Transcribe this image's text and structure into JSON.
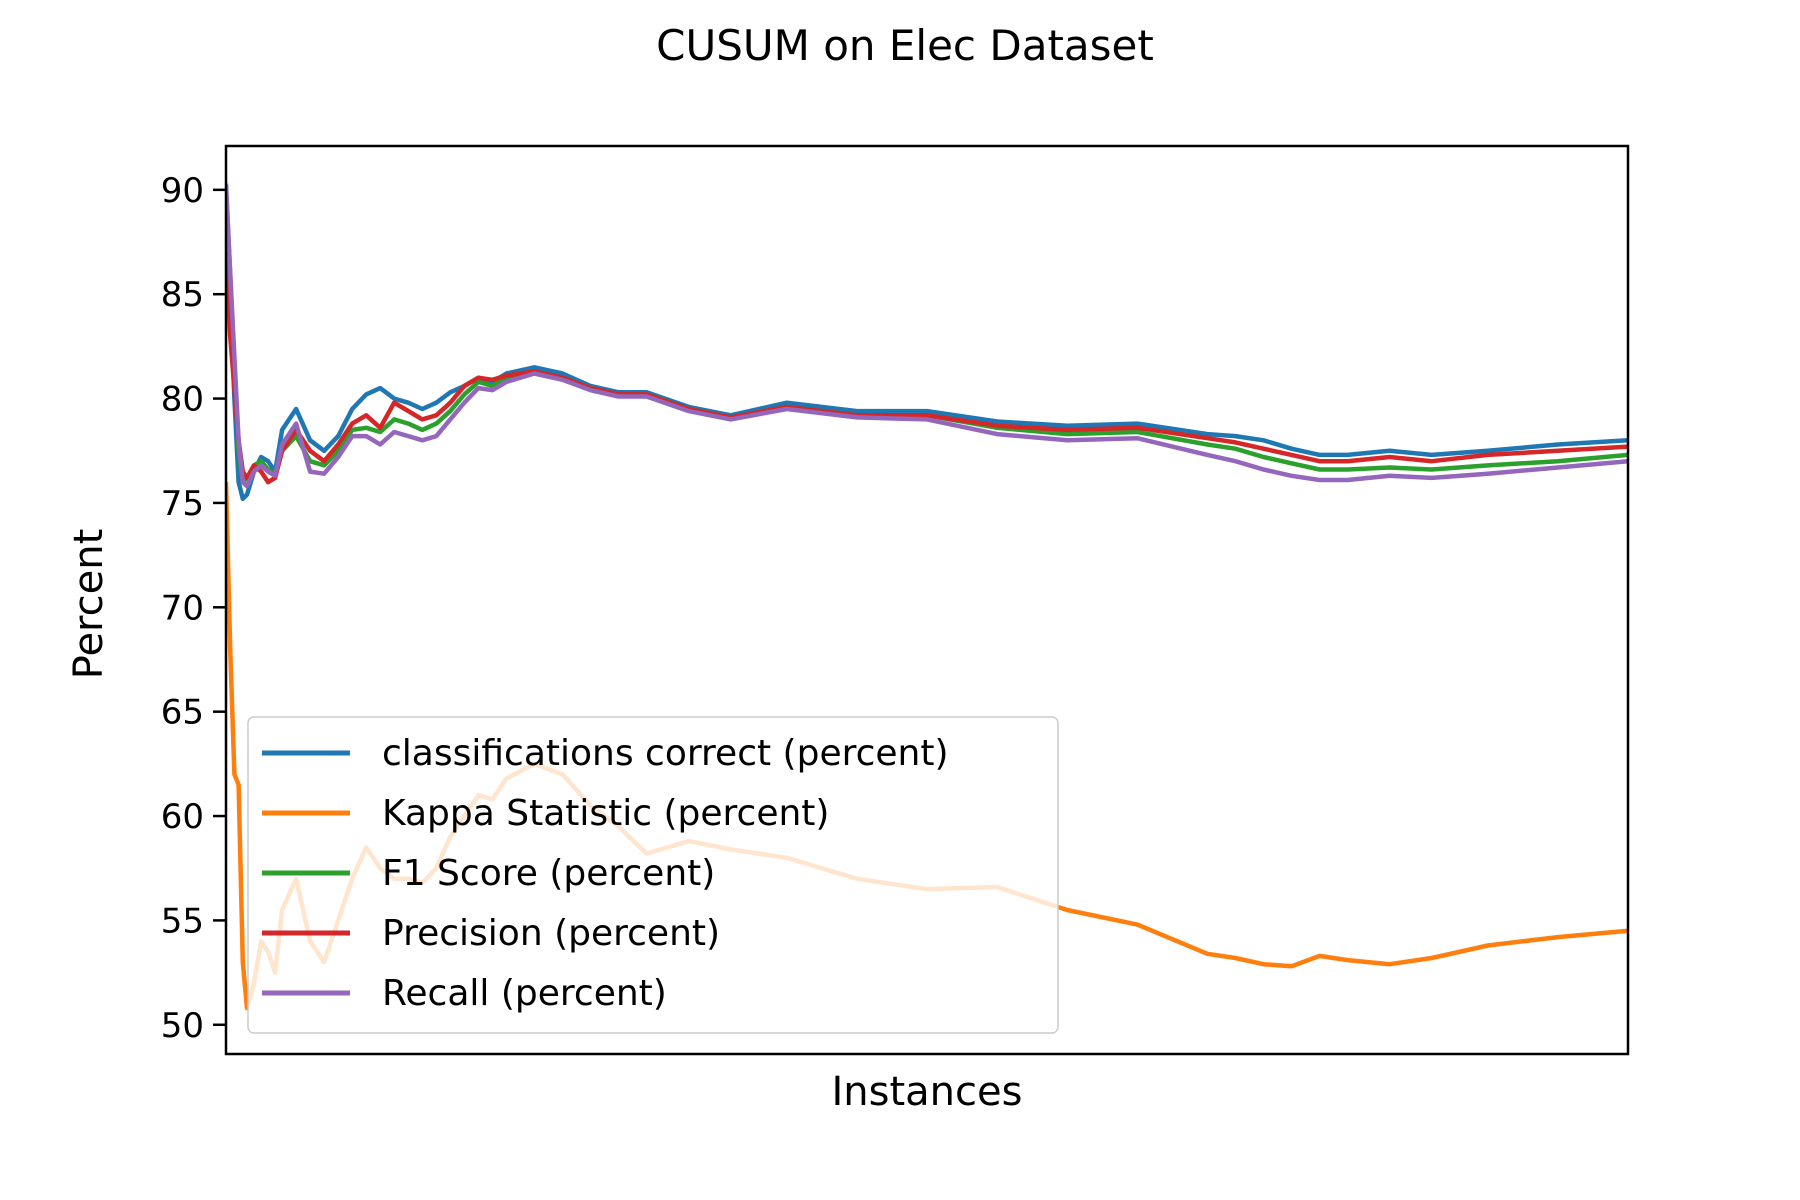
{
  "chart_data": {
    "type": "line",
    "title": "CUSUM on Elec Dataset",
    "xlabel": "Instances",
    "ylabel": "Percent",
    "xlim": [
      0,
      100
    ],
    "ylim": [
      48.6,
      92.1
    ],
    "yticks": [
      50,
      55,
      60,
      65,
      70,
      75,
      80,
      85,
      90
    ],
    "xticks_visible": false,
    "grid": false,
    "legend_position": "lower-left",
    "series": [
      {
        "name": "classifications correct (percent)",
        "color": "#1f77b4",
        "x": [
          0,
          0.3,
          0.6,
          0.9,
          1.2,
          1.5,
          2,
          2.5,
          3,
          3.5,
          4,
          5,
          6,
          7,
          8,
          9,
          10,
          11,
          12,
          13,
          14,
          15,
          16,
          17,
          18,
          19,
          20,
          22,
          24,
          26,
          28,
          30,
          33,
          36,
          40,
          45,
          50,
          55,
          60,
          65,
          70,
          72,
          74,
          76,
          78,
          80,
          83,
          86,
          90,
          95,
          100
        ],
        "y": [
          90,
          85,
          80,
          76,
          75.2,
          75.4,
          76.5,
          77.2,
          77,
          76.5,
          78.5,
          79.5,
          78,
          77.5,
          78.2,
          79.5,
          80.2,
          80.5,
          80,
          79.8,
          79.5,
          79.8,
          80.3,
          80.6,
          81,
          80.8,
          81.2,
          81.5,
          81.2,
          80.6,
          80.3,
          80.3,
          79.6,
          79.2,
          79.8,
          79.4,
          79.4,
          78.9,
          78.7,
          78.8,
          78.3,
          78.2,
          78,
          77.6,
          77.3,
          77.3,
          77.5,
          77.3,
          77.5,
          77.8,
          78
        ]
      },
      {
        "name": "Kappa Statistic (percent)",
        "color": "#ff7f0e",
        "x": [
          0,
          0.3,
          0.6,
          0.9,
          1.2,
          1.5,
          2,
          2.5,
          3,
          3.5,
          4,
          5,
          6,
          7,
          8,
          9,
          10,
          11,
          12,
          13,
          14,
          15,
          16,
          17,
          18,
          19,
          20,
          22,
          24,
          26,
          28,
          30,
          33,
          36,
          40,
          45,
          50,
          55,
          60,
          65,
          70,
          72,
          74,
          76,
          78,
          80,
          83,
          86,
          90,
          95,
          100
        ],
        "y": [
          76,
          68,
          62,
          61.5,
          53,
          50.8,
          52,
          54,
          53.5,
          52.5,
          55.5,
          57,
          54,
          53,
          55,
          57,
          58.5,
          57.5,
          57,
          57,
          56.8,
          57.5,
          59,
          60,
          61,
          60.8,
          61.8,
          62.5,
          62,
          60.5,
          59.5,
          58.2,
          58.8,
          58.4,
          58,
          57,
          56.5,
          56.6,
          55.5,
          54.8,
          53.4,
          53.2,
          52.9,
          52.8,
          53.3,
          53.1,
          52.9,
          53.2,
          53.8,
          54.2,
          54.5
        ]
      },
      {
        "name": "F1 Score (percent)",
        "color": "#2ca02c",
        "x": [
          0,
          0.3,
          0.6,
          0.9,
          1.2,
          1.5,
          2,
          2.5,
          3,
          3.5,
          4,
          5,
          6,
          7,
          8,
          9,
          10,
          11,
          12,
          13,
          14,
          15,
          16,
          17,
          18,
          19,
          20,
          22,
          24,
          26,
          28,
          30,
          33,
          36,
          40,
          45,
          50,
          55,
          60,
          65,
          70,
          72,
          74,
          76,
          78,
          80,
          83,
          86,
          90,
          95,
          100
        ],
        "y": [
          90,
          86,
          81.5,
          77.5,
          76,
          76.2,
          76.8,
          77,
          76.6,
          76.4,
          77.5,
          78.2,
          77,
          76.8,
          77.5,
          78.5,
          78.6,
          78.4,
          79,
          78.8,
          78.5,
          78.8,
          79.4,
          80.2,
          80.8,
          80.6,
          81,
          81.3,
          81,
          80.5,
          80.2,
          80.2,
          79.5,
          79.1,
          79.6,
          79.2,
          79.2,
          78.6,
          78.3,
          78.4,
          77.8,
          77.6,
          77.2,
          76.9,
          76.6,
          76.6,
          76.7,
          76.6,
          76.8,
          77,
          77.3
        ]
      },
      {
        "name": "Precision (percent)",
        "color": "#d62728",
        "x": [
          0,
          0.3,
          0.6,
          0.9,
          1.2,
          1.5,
          2,
          2.5,
          3,
          3.5,
          4,
          5,
          6,
          7,
          8,
          9,
          10,
          11,
          12,
          13,
          14,
          15,
          16,
          17,
          18,
          19,
          20,
          22,
          24,
          26,
          28,
          30,
          33,
          36,
          40,
          45,
          50,
          55,
          60,
          65,
          70,
          72,
          74,
          76,
          78,
          80,
          83,
          86,
          90,
          95,
          100
        ],
        "y": [
          87,
          83,
          80.5,
          78,
          76.5,
          76.2,
          76.8,
          76.5,
          76,
          76.2,
          77.5,
          78.5,
          77.5,
          77,
          77.8,
          78.8,
          79.2,
          78.6,
          79.8,
          79.4,
          79,
          79.2,
          79.8,
          80.6,
          81,
          80.9,
          81.1,
          81.3,
          81,
          80.5,
          80.2,
          80.2,
          79.5,
          79.1,
          79.6,
          79.2,
          79.2,
          78.7,
          78.5,
          78.6,
          78.1,
          77.9,
          77.6,
          77.3,
          77,
          77,
          77.2,
          77,
          77.3,
          77.5,
          77.7
        ]
      },
      {
        "name": "Recall (percent)",
        "color": "#9467bd",
        "x": [
          0,
          0.3,
          0.6,
          0.9,
          1.2,
          1.5,
          2,
          2.5,
          3,
          3.5,
          4,
          5,
          6,
          7,
          8,
          9,
          10,
          11,
          12,
          13,
          14,
          15,
          16,
          17,
          18,
          19,
          20,
          22,
          24,
          26,
          28,
          30,
          33,
          36,
          40,
          45,
          50,
          55,
          60,
          65,
          70,
          72,
          74,
          76,
          78,
          80,
          83,
          86,
          90,
          95,
          100
        ],
        "y": [
          90.3,
          86,
          82,
          78,
          76,
          75.8,
          76.5,
          76.8,
          76.5,
          76.3,
          77.8,
          78.8,
          76.5,
          76.4,
          77.2,
          78.2,
          78.2,
          77.8,
          78.4,
          78.2,
          78,
          78.2,
          79,
          79.8,
          80.5,
          80.4,
          80.8,
          81.2,
          80.9,
          80.4,
          80.1,
          80.1,
          79.4,
          79,
          79.5,
          79.1,
          79,
          78.3,
          78,
          78.1,
          77.3,
          77,
          76.6,
          76.3,
          76.1,
          76.1,
          76.3,
          76.2,
          76.4,
          76.7,
          77
        ]
      }
    ]
  }
}
